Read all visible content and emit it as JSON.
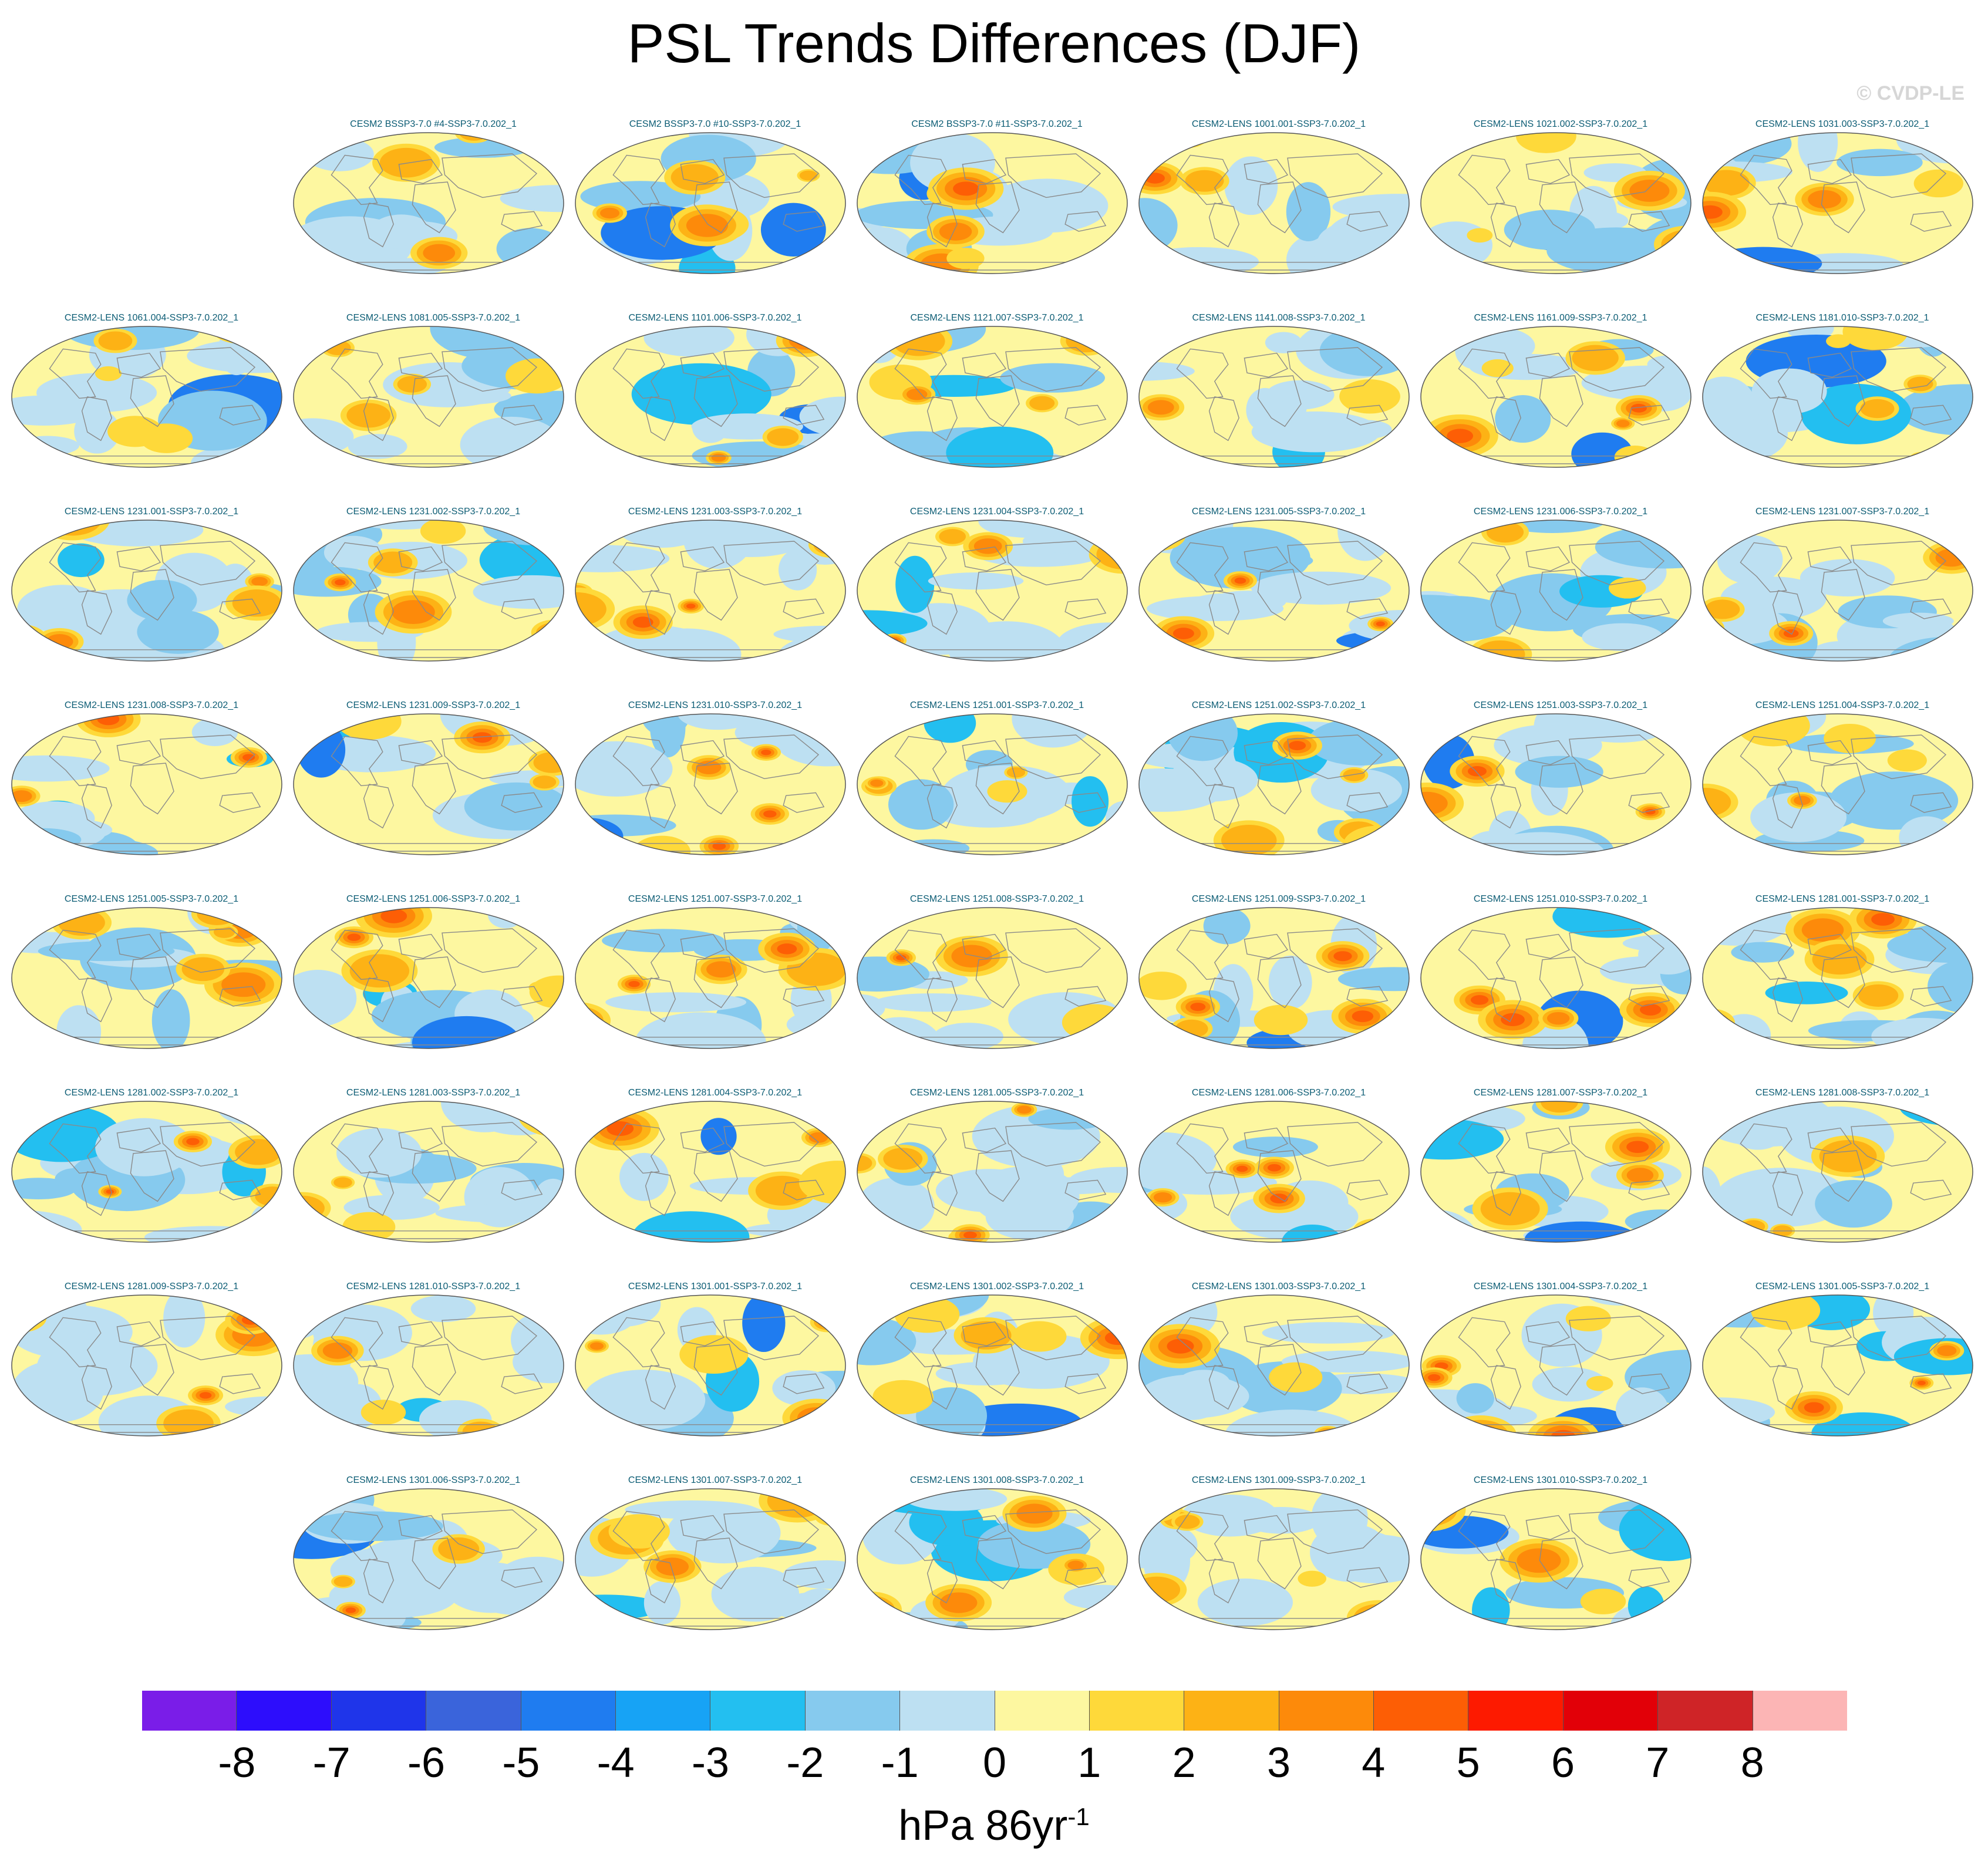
{
  "title": "PSL Trends Differences (DJF)",
  "watermark": "© CVDP-LE",
  "colorbar": {
    "tick_labels": [
      "-8",
      "-7",
      "-6",
      "-5",
      "-4",
      "-3",
      "-2",
      "-1",
      "0",
      "1",
      "2",
      "3",
      "4",
      "5",
      "6",
      "7",
      "8"
    ],
    "colors": [
      "#7a1de8",
      "#2d0dfc",
      "#1f35ea",
      "#3a64db",
      "#1f7cf0",
      "#17a3f5",
      "#23bff0",
      "#86caee",
      "#bde0f2",
      "#fdf7a0",
      "#fed93a",
      "#fdb215",
      "#fd8a0a",
      "#fd5e05",
      "#fd1a00",
      "#e20008",
      "#cf2427",
      "#fcb5b5"
    ],
    "units": "hPa 86yr",
    "units_exponent": "-1"
  },
  "panels": [
    [
      "",
      "CESM2 BSSP3-7.0 #4-SSP3-7.0.202_1",
      "CESM2 BSSP3-7.0 #10-SSP3-7.0.202_1",
      "CESM2 BSSP3-7.0 #11-SSP3-7.0.202_1",
      "CESM2-LENS 1001.001-SSP3-7.0.202_1",
      "CESM2-LENS 1021.002-SSP3-7.0.202_1",
      "CESM2-LENS 1031.003-SSP3-7.0.202_1"
    ],
    [
      "CESM2-LENS 1061.004-SSP3-7.0.202_1",
      "CESM2-LENS 1081.005-SSP3-7.0.202_1",
      "CESM2-LENS 1101.006-SSP3-7.0.202_1",
      "CESM2-LENS 1121.007-SSP3-7.0.202_1",
      "CESM2-LENS 1141.008-SSP3-7.0.202_1",
      "CESM2-LENS 1161.009-SSP3-7.0.202_1",
      "CESM2-LENS 1181.010-SSP3-7.0.202_1"
    ],
    [
      "CESM2-LENS 1231.001-SSP3-7.0.202_1",
      "CESM2-LENS 1231.002-SSP3-7.0.202_1",
      "CESM2-LENS 1231.003-SSP3-7.0.202_1",
      "CESM2-LENS 1231.004-SSP3-7.0.202_1",
      "CESM2-LENS 1231.005-SSP3-7.0.202_1",
      "CESM2-LENS 1231.006-SSP3-7.0.202_1",
      "CESM2-LENS 1231.007-SSP3-7.0.202_1"
    ],
    [
      "CESM2-LENS 1231.008-SSP3-7.0.202_1",
      "CESM2-LENS 1231.009-SSP3-7.0.202_1",
      "CESM2-LENS 1231.010-SSP3-7.0.202_1",
      "CESM2-LENS 1251.001-SSP3-7.0.202_1",
      "CESM2-LENS 1251.002-SSP3-7.0.202_1",
      "CESM2-LENS 1251.003-SSP3-7.0.202_1",
      "CESM2-LENS 1251.004-SSP3-7.0.202_1"
    ],
    [
      "CESM2-LENS 1251.005-SSP3-7.0.202_1",
      "CESM2-LENS 1251.006-SSP3-7.0.202_1",
      "CESM2-LENS 1251.007-SSP3-7.0.202_1",
      "CESM2-LENS 1251.008-SSP3-7.0.202_1",
      "CESM2-LENS 1251.009-SSP3-7.0.202_1",
      "CESM2-LENS 1251.010-SSP3-7.0.202_1",
      "CESM2-LENS 1281.001-SSP3-7.0.202_1"
    ],
    [
      "CESM2-LENS 1281.002-SSP3-7.0.202_1",
      "CESM2-LENS 1281.003-SSP3-7.0.202_1",
      "CESM2-LENS 1281.004-SSP3-7.0.202_1",
      "CESM2-LENS 1281.005-SSP3-7.0.202_1",
      "CESM2-LENS 1281.006-SSP3-7.0.202_1",
      "CESM2-LENS 1281.007-SSP3-7.0.202_1",
      "CESM2-LENS 1281.008-SSP3-7.0.202_1"
    ],
    [
      "CESM2-LENS 1281.009-SSP3-7.0.202_1",
      "CESM2-LENS 1281.010-SSP3-7.0.202_1",
      "CESM2-LENS 1301.001-SSP3-7.0.202_1",
      "CESM2-LENS 1301.002-SSP3-7.0.202_1",
      "CESM2-LENS 1301.003-SSP3-7.0.202_1",
      "CESM2-LENS 1301.004-SSP3-7.0.202_1",
      "CESM2-LENS 1301.005-SSP3-7.0.202_1"
    ],
    [
      "",
      "CESM2-LENS 1301.006-SSP3-7.0.202_1",
      "CESM2-LENS 1301.007-SSP3-7.0.202_1",
      "CESM2-LENS 1301.008-SSP3-7.0.202_1",
      "CESM2-LENS 1301.009-SSP3-7.0.202_1",
      "CESM2-LENS 1301.010-SSP3-7.0.202_1",
      ""
    ]
  ]
}
